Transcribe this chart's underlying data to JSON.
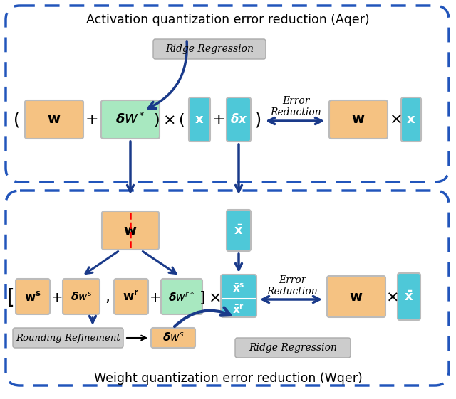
{
  "fig_width": 6.4,
  "fig_height": 5.61,
  "bg_color": "#ffffff",
  "orange_color": "#F5C282",
  "green_color": "#A8E8C0",
  "cyan_color": "#4EC8D8",
  "border_color": "#2255BB",
  "box_edge_color": "#BBBBBB",
  "dark_blue": "#1A3A8A",
  "gray_box_fc": "#CCCCCC",
  "gray_box_ec": "#AAAAAA",
  "title_top": "Activation quantization error reduction (Aqer)",
  "title_bottom": "Weight quantization error reduction (Wqer)",
  "label_ridge_top": "Ridge Regression",
  "label_error_top": "Error\nReduction",
  "label_error_bottom": "Error\nReduction",
  "label_ridge_bottom": "Ridge Regression",
  "label_rounding": "Rounding Refinement"
}
